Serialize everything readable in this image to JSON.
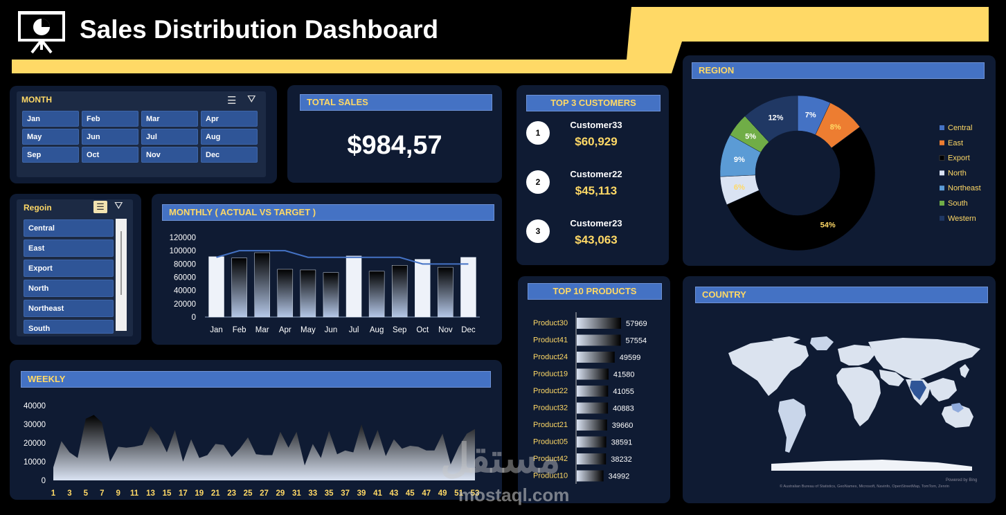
{
  "header": {
    "title": "Sales Distribution Dashboard",
    "icon": "presentation-chart-icon"
  },
  "month_slicer": {
    "title": "MONTH",
    "items": [
      "Jan",
      "Feb",
      "Mar",
      "Apr",
      "May",
      "Jun",
      "Jul",
      "Aug",
      "Sep",
      "Oct",
      "Nov",
      "Dec"
    ]
  },
  "total_sales": {
    "title": "TOTAL SALES",
    "value": "$984,57"
  },
  "region_slicer": {
    "title": "Regoin",
    "items": [
      "Central",
      "East",
      "Export",
      "North",
      "Northeast",
      "South"
    ]
  },
  "top_customers": {
    "title": "TOP 3 CUSTOMERS",
    "items": [
      {
        "rank": "1",
        "name": "Customer33",
        "value": "$60,929"
      },
      {
        "rank": "2",
        "name": "Customer22",
        "value": "$45,113"
      },
      {
        "rank": "3",
        "name": "Customer23",
        "value": "$43,063"
      }
    ]
  },
  "monthly_title": "MONTHLY ( ACTUAL VS TARGET )",
  "weekly_title": "WEEKLY",
  "products_title": "TOP 10 PRODUCTS",
  "region_title": "REGION",
  "country": {
    "title": "COUNTRY",
    "credit_line1": "Powered by Bing",
    "credit_line2": "© Australian Bureau of Statistics, GeoNames, Microsoft, Navinfo, OpenStreetMap, TomTom, Zenrin"
  },
  "watermark": {
    "arabic": "مستقل",
    "latin": "mostaql.com"
  },
  "colors": {
    "accent": "#ffd966",
    "panel": "#0f1b33",
    "header_bar": "#4472c4",
    "slicer_button": "#2f5597"
  },
  "chart_data": [
    {
      "id": "monthly",
      "type": "bar",
      "categories": [
        "Jan",
        "Feb",
        "Mar",
        "Apr",
        "May",
        "Jun",
        "Jul",
        "Aug",
        "Sep",
        "Oct",
        "Nov",
        "Dec"
      ],
      "series": [
        {
          "values": [
            91000,
            89000,
            97000,
            72000,
            71000,
            67000,
            92000,
            69000,
            78000,
            87000,
            75000,
            90000
          ]
        },
        {
          "type": "line",
          "values": [
            90000,
            100000,
            100000,
            100000,
            90000,
            90000,
            90000,
            90000,
            90000,
            80000,
            80000,
            80000
          ]
        }
      ],
      "yticks": [
        0,
        20000,
        40000,
        60000,
        80000,
        100000,
        120000
      ],
      "ylim": [
        0,
        120000
      ]
    },
    {
      "id": "weekly",
      "type": "area",
      "x": [
        1,
        2,
        3,
        4,
        5,
        6,
        7,
        8,
        9,
        10,
        11,
        12,
        13,
        14,
        15,
        16,
        17,
        18,
        19,
        20,
        21,
        22,
        23,
        24,
        25,
        26,
        27,
        28,
        29,
        30,
        31,
        32,
        33,
        34,
        35,
        36,
        37,
        38,
        39,
        40,
        41,
        42,
        43,
        44,
        45,
        46,
        47,
        48,
        49,
        50,
        51,
        52,
        53
      ],
      "values": [
        7000,
        21000,
        15000,
        12000,
        33000,
        35000,
        31000,
        10000,
        18000,
        17500,
        18000,
        19000,
        29000,
        24000,
        15000,
        27000,
        10000,
        22000,
        12000,
        13500,
        19500,
        19000,
        12500,
        17000,
        23000,
        14000,
        13500,
        13500,
        26000,
        17500,
        26000,
        8000,
        19500,
        12000,
        26500,
        14000,
        16000,
        15000,
        30000,
        16000,
        27000,
        13000,
        22000,
        17000,
        18500,
        18000,
        16000,
        16000,
        25000,
        8500,
        18000,
        25000,
        27500
      ],
      "xticks": [
        1,
        3,
        5,
        7,
        9,
        11,
        13,
        15,
        17,
        19,
        21,
        23,
        25,
        27,
        29,
        31,
        33,
        35,
        37,
        39,
        41,
        43,
        45,
        47,
        49,
        51,
        53
      ],
      "yticks": [
        0,
        10000,
        20000,
        30000,
        40000
      ],
      "ylim": [
        0,
        40000
      ]
    },
    {
      "id": "top_products",
      "type": "bar",
      "orientation": "horizontal",
      "categories": [
        "Product30",
        "Product41",
        "Product24",
        "Product19",
        "Product22",
        "Product32",
        "Product21",
        "Product05",
        "Product42",
        "Product10"
      ],
      "values": [
        57969,
        57554,
        49599,
        41580,
        41055,
        40883,
        39660,
        38591,
        38232,
        34992
      ]
    },
    {
      "id": "region",
      "type": "pie",
      "donut": true,
      "labels": [
        "Central",
        "East",
        "Export",
        "North",
        "Northeast",
        "South",
        "Western"
      ],
      "values": [
        7,
        8,
        54,
        6,
        9,
        5,
        12
      ],
      "value_labels": [
        "7%",
        "8%",
        "54%",
        "6%",
        "9%",
        "5%",
        "12%"
      ],
      "colors": [
        "#4472c4",
        "#ed7d31",
        "#000000",
        "#dae3f3",
        "#5b9bd5",
        "#70ad47",
        "#203864"
      ],
      "legend": "right"
    }
  ]
}
